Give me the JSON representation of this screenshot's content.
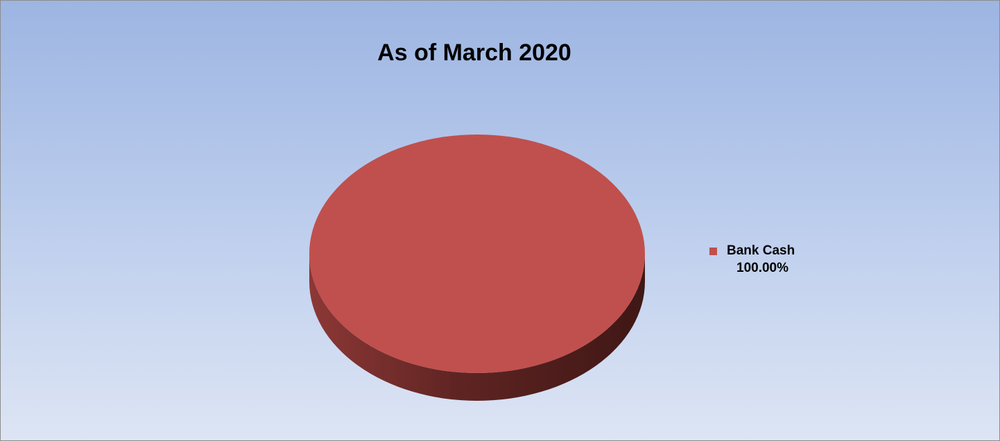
{
  "chart_data": {
    "type": "pie",
    "title": "As of March 2020",
    "slices": [
      {
        "label": "Bank Cash",
        "value": 100.0,
        "value_label": "100.00%",
        "color": "#c0504d"
      }
    ],
    "legend_position": "right",
    "style": "3d"
  }
}
